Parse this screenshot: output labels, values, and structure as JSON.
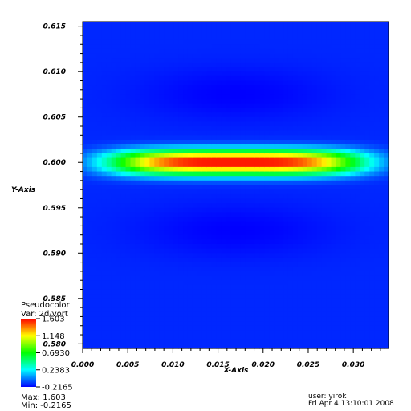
{
  "chart_data": {
    "type": "heatmap",
    "xlabel": "X-Axis",
    "ylabel": "Y-Axis",
    "xlim": [
      0.0,
      0.0339
    ],
    "ylim": [
      0.5795,
      0.6155
    ],
    "x_ticks": [
      "0.000",
      "0.005",
      "0.010",
      "0.015",
      "0.020",
      "0.025",
      "0.030"
    ],
    "x_tick_values": [
      0.0,
      0.005,
      0.01,
      0.015,
      0.02,
      0.025,
      0.03
    ],
    "y_ticks": [
      "0.615",
      "0.610",
      "0.605",
      "0.600",
      "0.595",
      "0.590",
      "0.585",
      "0.580"
    ],
    "y_tick_values": [
      0.615,
      0.61,
      0.605,
      0.6,
      0.595,
      0.59,
      0.585,
      0.58
    ],
    "field": {
      "variable": "2d/vort",
      "peak_value": 1.603,
      "peak_x": 0.017,
      "peak_y": 0.6,
      "background_value": -0.2165
    },
    "legend": {
      "title": "Pseudocolor",
      "var_label": "Var: 2d/vort",
      "tick_labels": [
        "1.603",
        "1.148",
        "0.6930",
        "0.2383",
        "-0.2165"
      ],
      "tick_values": [
        1.603,
        1.148,
        0.693,
        0.2383,
        -0.2165
      ],
      "max_label": "Max:  1.603",
      "min_label": "Min: -0.2165"
    }
  },
  "info": {
    "user": "user: yirok",
    "date": "Fri Apr  4 13:10:01 2008"
  }
}
